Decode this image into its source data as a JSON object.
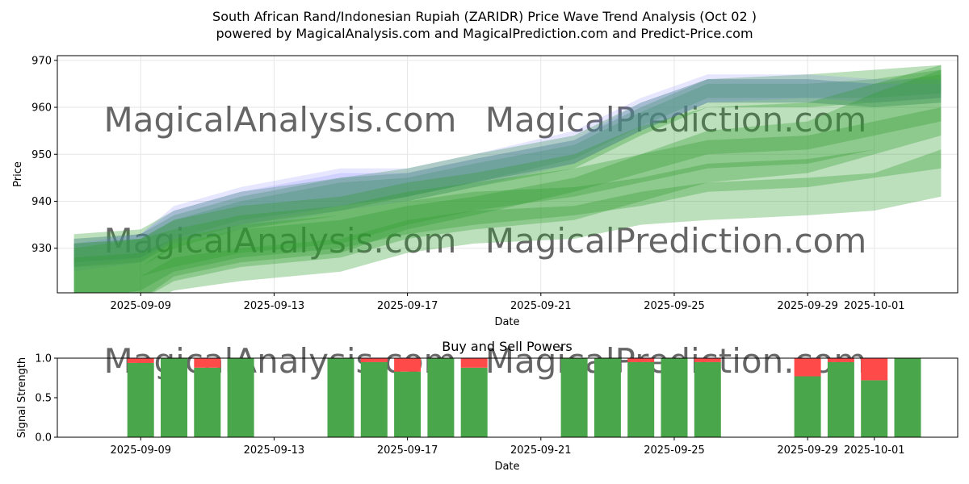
{
  "title_line1": "South African Rand/Indonesian Rupiah (ZARIDR) Price Wave Trend Analysis (Oct 02 )",
  "title_line2": "powered by MagicalAnalysis.com and MagicalPrediction.com and Predict-Price.com",
  "watermarks": [
    "MagicalAnalysis.com",
    "MagicalPrediction.com"
  ],
  "colors": {
    "green_band": "#2e9b2e",
    "blue_band": "#7777ff",
    "buy": "#4aa64a",
    "sell": "#ff4a4a",
    "grid": "#e6e6e6",
    "watermark": "#dcdcdc"
  },
  "chart_data": [
    {
      "type": "area",
      "title": "",
      "xlabel": "Date",
      "ylabel": "Price",
      "xlim": [
        "2025-09-06T12:00",
        "2025-10-03T12:00"
      ],
      "ylim": [
        920.5,
        971
      ],
      "xticks": [
        "2025-09-09",
        "2025-09-13",
        "2025-09-17",
        "2025-09-21",
        "2025-09-25",
        "2025-09-29",
        "2025-10-01"
      ],
      "yticks": [
        930,
        940,
        950,
        960,
        970
      ],
      "x": [
        "2025-09-07",
        "2025-09-09",
        "2025-09-10",
        "2025-09-12",
        "2025-09-15",
        "2025-09-17",
        "2025-09-19",
        "2025-09-22",
        "2025-09-24",
        "2025-09-26",
        "2025-09-29",
        "2025-10-01",
        "2025-10-03"
      ],
      "series": [
        {
          "name": "historic-wave-green-1",
          "color": "green",
          "lower": [
            926,
            927,
            931,
            935,
            938,
            941,
            944,
            948,
            955,
            961,
            961,
            960,
            961
          ],
          "upper": [
            932,
            933,
            937,
            941,
            945,
            946,
            949,
            953,
            960,
            966,
            966,
            965,
            967
          ]
        },
        {
          "name": "historic-wave-green-2",
          "color": "green",
          "lower": [
            925,
            926,
            930,
            934,
            937,
            940,
            943,
            947,
            954,
            960,
            960,
            961,
            962
          ],
          "upper": [
            931,
            932,
            936,
            940,
            944,
            945,
            948,
            952,
            959,
            965,
            965,
            966,
            968
          ]
        },
        {
          "name": "historic-wave-green-3",
          "color": "green",
          "lower": [
            927,
            928,
            932,
            936,
            939,
            941,
            944,
            949,
            956,
            962,
            962,
            962,
            963
          ],
          "upper": [
            933,
            934,
            938,
            942,
            945,
            947,
            950,
            954,
            961,
            966,
            967,
            968,
            969
          ]
        },
        {
          "name": "historic-wave-blue-1",
          "color": "blue",
          "lower": [
            925,
            927,
            932,
            935,
            939,
            941,
            944,
            948,
            955,
            961,
            962,
            961,
            962
          ],
          "upper": [
            932,
            933,
            939,
            943,
            947,
            947,
            950,
            955,
            962,
            967,
            967,
            966,
            966
          ]
        },
        {
          "name": "historic-wave-blue-2",
          "color": "blue",
          "lower": [
            926,
            928,
            931,
            934,
            938,
            940,
            943,
            948,
            955,
            961,
            961,
            960,
            961
          ],
          "upper": [
            931,
            933,
            938,
            942,
            946,
            946,
            949,
            953,
            961,
            966,
            966,
            965,
            965
          ]
        },
        {
          "name": "forecast-band-1",
          "color": "green",
          "lower": [
            919,
            921,
            925,
            928,
            930,
            933,
            935,
            937,
            939,
            942,
            943,
            945,
            947
          ],
          "upper": [
            928,
            929,
            932,
            935,
            937,
            940,
            942,
            943,
            945,
            948,
            949,
            951,
            953
          ]
        },
        {
          "name": "forecast-band-2",
          "color": "green",
          "lower": [
            916,
            918,
            921,
            923,
            925,
            929,
            931,
            932,
            935,
            936,
            937,
            938,
            941
          ],
          "upper": [
            922,
            924,
            928,
            930,
            932,
            936,
            938,
            939,
            942,
            944,
            945,
            946,
            951
          ]
        },
        {
          "name": "forecast-band-3",
          "color": "green",
          "lower": [
            917,
            919,
            923,
            926,
            928,
            932,
            934,
            936,
            940,
            944,
            946,
            950,
            954
          ],
          "upper": [
            925,
            926,
            931,
            934,
            936,
            939,
            941,
            945,
            950,
            955,
            957,
            963,
            968
          ]
        },
        {
          "name": "forecast-band-4",
          "color": "green",
          "lower": [
            918,
            919,
            924,
            927,
            929,
            934,
            937,
            942,
            946,
            950,
            951,
            954,
            957
          ],
          "upper": [
            931,
            932,
            936,
            939,
            941,
            944,
            946,
            950,
            956,
            960,
            961,
            965,
            969
          ]
        },
        {
          "name": "forecast-band-5",
          "color": "green",
          "lower": [
            922,
            924,
            926,
            929,
            931,
            935,
            938,
            941,
            944,
            947,
            948,
            951,
            953
          ],
          "upper": [
            930,
            932,
            934,
            937,
            939,
            942,
            944,
            947,
            950,
            953,
            954,
            957,
            960
          ]
        }
      ]
    },
    {
      "type": "bar",
      "title": "Buy and Sell Powers",
      "xlabel": "Date",
      "ylabel": "Signal Strength",
      "ylim": [
        0,
        1.0
      ],
      "yticks": [
        "0.0",
        "0.5",
        "1.0"
      ],
      "xticks": [
        "2025-09-09",
        "2025-09-13",
        "2025-09-17",
        "2025-09-21",
        "2025-09-25",
        "2025-09-29",
        "2025-10-01"
      ],
      "categories": [
        "2025-09-09",
        "2025-09-10",
        "2025-09-11",
        "2025-09-12",
        "2025-09-15",
        "2025-09-16",
        "2025-09-17",
        "2025-09-18",
        "2025-09-19",
        "2025-09-22",
        "2025-09-23",
        "2025-09-24",
        "2025-09-25",
        "2025-09-26",
        "2025-09-29",
        "2025-09-30",
        "2025-10-01",
        "2025-10-02"
      ],
      "series": [
        {
          "name": "Buy",
          "values": [
            0.94,
            1.0,
            0.88,
            1.0,
            1.0,
            0.95,
            0.83,
            1.0,
            0.88,
            1.0,
            1.0,
            0.95,
            1.0,
            0.95,
            0.77,
            0.95,
            0.72,
            1.0
          ]
        },
        {
          "name": "Sell",
          "values": [
            0.06,
            0.0,
            0.12,
            0.0,
            0.0,
            0.05,
            0.17,
            0.0,
            0.12,
            0.0,
            0.0,
            0.05,
            0.0,
            0.05,
            0.23,
            0.05,
            0.28,
            0.0
          ]
        }
      ]
    }
  ]
}
